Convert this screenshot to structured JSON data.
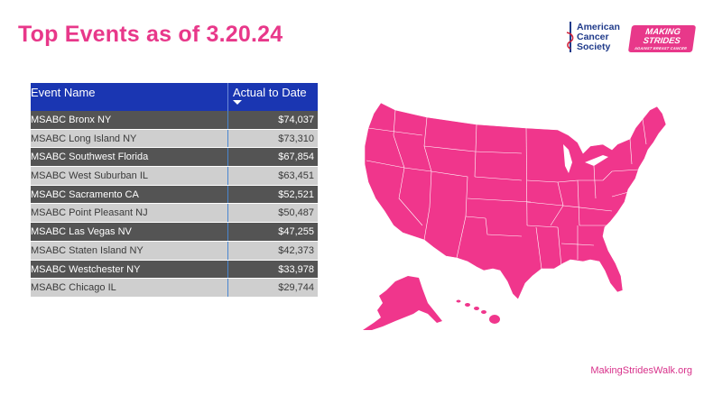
{
  "slide": {
    "title": "Top Events as of 3.20.24",
    "footer_url": "MakingStridesWalk.org"
  },
  "logos": {
    "acs": {
      "line1": "American",
      "line2": "Cancer",
      "line3": "Society"
    },
    "making_strides": {
      "line1": "MAKING",
      "line2": "STRIDES",
      "line3": "AGAINST BREAST CANCER"
    }
  },
  "table": {
    "headers": {
      "event_name": "Event Name",
      "actual_to_date": "Actual to Date"
    },
    "rows": [
      {
        "name": "MSABC Bronx NY",
        "amount": "$74,037"
      },
      {
        "name": "MSABC Long Island NY",
        "amount": "$73,310"
      },
      {
        "name": "MSABC Southwest Florida",
        "amount": "$67,854"
      },
      {
        "name": "MSABC West Suburban IL",
        "amount": "$63,451"
      },
      {
        "name": "MSABC Sacramento CA",
        "amount": "$52,521"
      },
      {
        "name": "MSABC Point Pleasant NJ",
        "amount": "$50,487"
      },
      {
        "name": "MSABC Las Vegas NV",
        "amount": "$47,255"
      },
      {
        "name": "MSABC Staten Island NY",
        "amount": "$42,373"
      },
      {
        "name": "MSABC Westchester NY",
        "amount": "$33,978"
      },
      {
        "name": "MSABC Chicago IL",
        "amount": "$29,744"
      }
    ]
  },
  "colors": {
    "brand_pink": "#e8388a",
    "table_header_blue": "#1a36b2",
    "row_dark": "#545454",
    "row_light": "#cfcfcf",
    "acs_navy": "#1f3a8a"
  }
}
